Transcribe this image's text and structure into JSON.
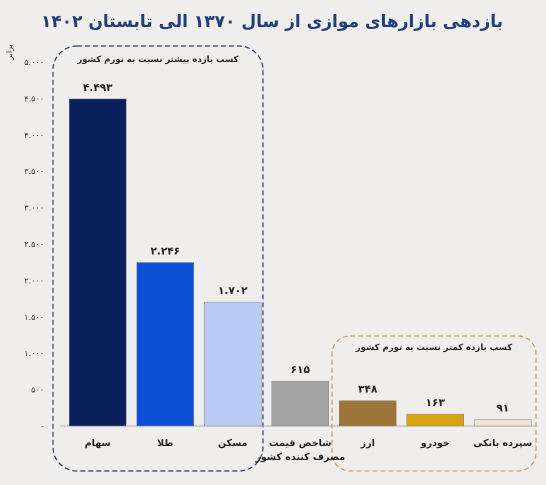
{
  "chart_data": {
    "type": "bar",
    "title": "بازدهی بازارهای موازی از سال ۱۳۷۰ الی تابستان ۱۴۰۲",
    "ylabel": "برابر",
    "ylim": [
      0,
      5000
    ],
    "yticks": [
      {
        "value": 0,
        "label": "-"
      },
      {
        "value": 500,
        "label": "۵۰۰"
      },
      {
        "value": 1000,
        "label": "۱.۰۰۰"
      },
      {
        "value": 1500,
        "label": "۱.۵۰۰"
      },
      {
        "value": 2000,
        "label": "۲.۰۰۰"
      },
      {
        "value": 2500,
        "label": "۲.۵۰۰"
      },
      {
        "value": 3000,
        "label": "۳.۰۰۰"
      },
      {
        "value": 3500,
        "label": "۳.۵۰۰"
      },
      {
        "value": 4000,
        "label": "۴.۰۰۰"
      },
      {
        "value": 4500,
        "label": "۴.۵۰۰"
      },
      {
        "value": 5000,
        "label": "۵.۰۰۰"
      }
    ],
    "categories": [
      {
        "label": [
          "سهام"
        ],
        "value": 4493,
        "value_label": "۴.۴۹۳",
        "color": "#0a1f5c"
      },
      {
        "label": [
          "طلا"
        ],
        "value": 2246,
        "value_label": "۲.۲۴۶",
        "color": "#0d4fd6"
      },
      {
        "label": [
          "مسکن"
        ],
        "value": 1702,
        "value_label": "۱.۷۰۲",
        "color": "#b8ccf5"
      },
      {
        "label": [
          "شاخص قیمت",
          "مصرف کننده کشور"
        ],
        "value": 615,
        "value_label": "۶۱۵",
        "color": "#a3a3a3"
      },
      {
        "label": [
          "ارز"
        ],
        "value": 348,
        "value_label": "۳۴۸",
        "color": "#9c7537"
      },
      {
        "label": [
          "خودرو"
        ],
        "value": 163,
        "value_label": "۱۶۳",
        "color": "#d7a512"
      },
      {
        "label": [
          "سپرده بانکی"
        ],
        "value": 91,
        "value_label": "۹۱",
        "color": "#efe6d0"
      }
    ],
    "groups": [
      {
        "label": "کسب بازده بیشتر نسبت به تورم کشور",
        "color": "#2d3f73"
      },
      {
        "label": "کسب بازده کمتر نسبت به تورم کشور",
        "color": "#c9a25e"
      }
    ],
    "grid": false,
    "legend": "none"
  }
}
